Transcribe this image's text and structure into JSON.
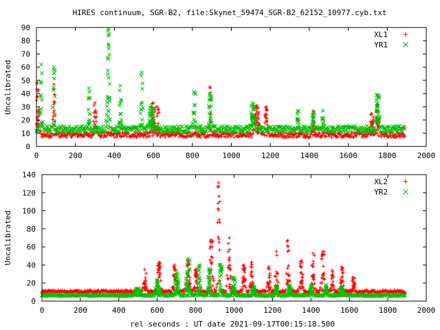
{
  "title": "HIRES continuum, SGR-B2, file:Skynet_59474_SGR-B2_62152_10977.cyb.txt",
  "xlabel": "rel seconds : UT date 2021-09-17T00:15:18.500",
  "colors": {
    "series_a": "#ff0000",
    "series_b": "#00c000"
  },
  "chart_data": [
    {
      "type": "scatter",
      "ylabel": "Uncalibrated",
      "xlim": [
        0,
        2000
      ],
      "ylim": [
        0,
        90
      ],
      "xticks": [
        0,
        200,
        400,
        600,
        800,
        1000,
        1200,
        1400,
        1600,
        1800,
        2000
      ],
      "yticks": [
        0,
        10,
        20,
        30,
        40,
        50,
        60,
        70,
        80,
        90
      ],
      "legend_position": "top-right",
      "series": [
        {
          "name": "XL1",
          "marker": "plus",
          "color": "#ff0000",
          "baseline": 8,
          "noise": 4,
          "x_range": [
            0,
            1890
          ],
          "bursts": [
            [
              5,
              48,
              18
            ],
            [
              90,
              47,
              10
            ],
            [
              300,
              33,
              14
            ],
            [
              600,
              33,
              20
            ],
            [
              620,
              30,
              15
            ],
            [
              890,
              45,
              8
            ],
            [
              1130,
              31,
              25
            ],
            [
              1180,
              30,
              16
            ],
            [
              1420,
              27,
              12
            ],
            [
              1720,
              25,
              20
            ],
            [
              1750,
              32,
              16
            ]
          ]
        },
        {
          "name": "YR1",
          "marker": "cross",
          "color": "#00c000",
          "baseline": 12,
          "noise": 5,
          "x_range": [
            0,
            1890
          ],
          "bursts": [
            [
              25,
              62,
              10
            ],
            [
              90,
              60,
              10
            ],
            [
              270,
              44,
              10
            ],
            [
              370,
              89,
              12
            ],
            [
              365,
              67,
              10
            ],
            [
              430,
              46,
              12
            ],
            [
              540,
              56,
              10
            ],
            [
              590,
              31,
              25
            ],
            [
              810,
              41,
              12
            ],
            [
              890,
              40,
              16
            ],
            [
              1110,
              33,
              20
            ],
            [
              1340,
              27,
              10
            ],
            [
              1420,
              26,
              10
            ],
            [
              1470,
              27,
              10
            ],
            [
              1750,
              39,
              18
            ]
          ]
        }
      ]
    },
    {
      "type": "scatter",
      "ylabel": "Uncalibrated",
      "xlim": [
        0,
        2000
      ],
      "ylim": [
        0,
        140
      ],
      "xticks": [
        0,
        200,
        400,
        600,
        800,
        1000,
        1200,
        1400,
        1600,
        1800,
        2000
      ],
      "yticks": [
        0,
        20,
        40,
        60,
        80,
        100,
        120,
        140
      ],
      "legend_position": "top-right",
      "series": [
        {
          "name": "XL2",
          "marker": "plus",
          "color": "#ff0000",
          "baseline": 10,
          "noise": 3,
          "x_range": [
            0,
            1890
          ],
          "bursts": [
            [
              535,
              35,
              14
            ],
            [
              610,
              43,
              16
            ],
            [
              690,
              40,
              16
            ],
            [
              760,
              45,
              18
            ],
            [
              800,
              35,
              16
            ],
            [
              880,
              68,
              18
            ],
            [
              920,
              131,
              14
            ],
            [
              975,
              70,
              18
            ],
            [
              1050,
              40,
              16
            ],
            [
              1090,
              43,
              14
            ],
            [
              1180,
              38,
              14
            ],
            [
              1220,
              55,
              14
            ],
            [
              1280,
              67,
              14
            ],
            [
              1350,
              45,
              14
            ],
            [
              1410,
              53,
              14
            ],
            [
              1460,
              55,
              16
            ],
            [
              1510,
              34,
              14
            ],
            [
              1560,
              38,
              14
            ],
            [
              1620,
              26,
              14
            ]
          ]
        },
        {
          "name": "YR2",
          "marker": "cross",
          "color": "#00c000",
          "baseline": 6,
          "noise": 2,
          "x_range": [
            0,
            1890
          ],
          "bursts": [
            [
              500,
              14,
              30
            ],
            [
              600,
              24,
              20
            ],
            [
              700,
              32,
              20
            ],
            [
              760,
              47,
              20
            ],
            [
              820,
              40,
              16
            ],
            [
              870,
              36,
              14
            ],
            [
              930,
              40,
              16
            ],
            [
              1000,
              26,
              16
            ],
            [
              1100,
              18,
              16
            ],
            [
              1220,
              16,
              14
            ],
            [
              1290,
              18,
              14
            ],
            [
              1400,
              17,
              16
            ],
            [
              1480,
              18,
              16
            ],
            [
              1560,
              16,
              14
            ]
          ]
        }
      ]
    }
  ]
}
